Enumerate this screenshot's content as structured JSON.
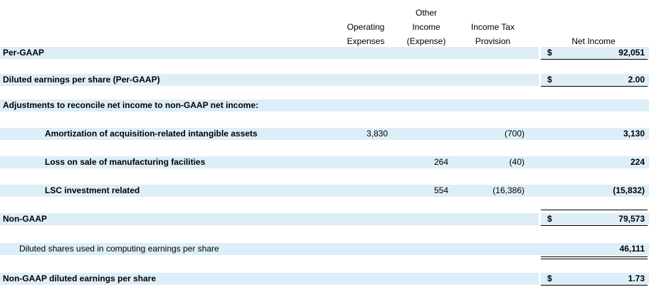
{
  "headers": {
    "operating_expenses": [
      "Operating",
      "Expenses"
    ],
    "other_income": [
      "Other",
      "Income",
      "(Expense)"
    ],
    "income_tax": [
      "Income Tax",
      "Provision"
    ],
    "net_income": [
      "Net Income"
    ]
  },
  "rows": {
    "per_gaap": {
      "label": "Per-GAAP",
      "currency": "$",
      "net_income": "92,051"
    },
    "diluted_eps_gaap": {
      "label": "Diluted earnings per share (Per-GAAP)",
      "currency": "$",
      "net_income": "2.00"
    },
    "adjustments": {
      "label": "Adjustments to reconcile net income to non-GAAP net income:"
    },
    "amortization": {
      "label": "Amortization of acquisition-related intangible assets",
      "operating_expenses": "3,830",
      "income_tax": "(700)",
      "net_income": "3,130"
    },
    "loss_on_sale": {
      "label": "Loss on sale of manufacturing facilities",
      "other_income": "264",
      "income_tax": "(40)",
      "net_income": "224"
    },
    "lsc": {
      "label": "LSC investment related",
      "other_income": "554",
      "income_tax": "(16,386)",
      "net_income": "(15,832)"
    },
    "non_gaap": {
      "label": "Non-GAAP",
      "currency": "$",
      "net_income": "79,573"
    },
    "diluted_shares": {
      "label": "Diluted shares used in computing earnings per share",
      "net_income": "46,111"
    },
    "non_gaap_eps": {
      "label": "Non-GAAP diluted earnings per share",
      "currency": "$",
      "net_income": "1.73"
    }
  }
}
